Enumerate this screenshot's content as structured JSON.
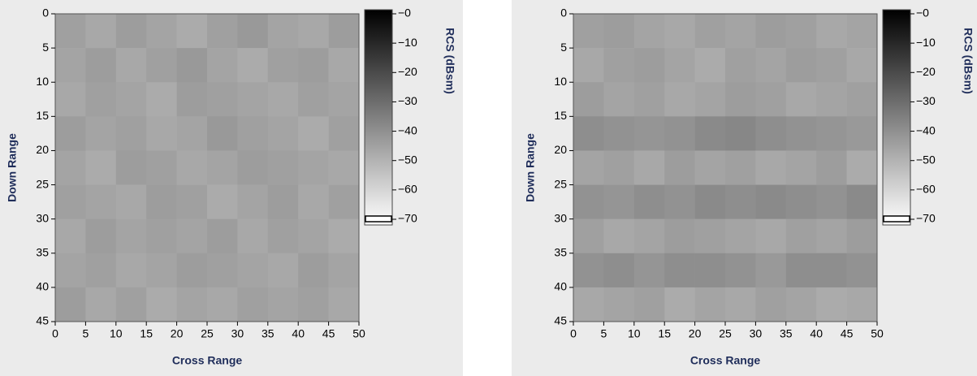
{
  "chart_data": [
    {
      "type": "heatmap",
      "xlabel": "Cross Range",
      "ylabel": "Down Range",
      "colorbar_label": "RCS (dBsm)",
      "xlim": [
        0,
        50
      ],
      "ylim": [
        0,
        45
      ],
      "xticks": [
        0,
        5,
        10,
        15,
        20,
        25,
        30,
        35,
        40,
        45,
        50
      ],
      "yticks": [
        0,
        5,
        10,
        15,
        20,
        25,
        30,
        35,
        40,
        45
      ],
      "zlim": [
        -70,
        0
      ],
      "zticks": [
        {
          "value": 0,
          "label": "−0"
        },
        {
          "value": -10,
          "label": "−10"
        },
        {
          "value": -20,
          "label": "−20"
        },
        {
          "value": -30,
          "label": "−30"
        },
        {
          "value": -40,
          "label": "−40"
        },
        {
          "value": -50,
          "label": "−50"
        },
        {
          "value": -60,
          "label": "−60"
        },
        {
          "value": -70,
          "label": "−70"
        }
      ],
      "z": [
        [
          -44,
          -46,
          -43,
          -45,
          -47,
          -44,
          -42,
          -45,
          -46,
          -43
        ],
        [
          -45,
          -43,
          -46,
          -44,
          -42,
          -45,
          -47,
          -44,
          -43,
          -46
        ],
        [
          -46,
          -44,
          -45,
          -47,
          -43,
          -44,
          -45,
          -46,
          -44,
          -45
        ],
        [
          -43,
          -45,
          -44,
          -46,
          -45,
          -42,
          -44,
          -45,
          -47,
          -44
        ],
        [
          -45,
          -47,
          -43,
          -44,
          -46,
          -45,
          -43,
          -44,
          -45,
          -46
        ],
        [
          -44,
          -45,
          -46,
          -43,
          -44,
          -47,
          -45,
          -43,
          -46,
          -44
        ],
        [
          -46,
          -43,
          -45,
          -44,
          -45,
          -43,
          -46,
          -44,
          -45,
          -47
        ],
        [
          -45,
          -44,
          -46,
          -45,
          -43,
          -44,
          -45,
          -46,
          -43,
          -45
        ],
        [
          -43,
          -46,
          -44,
          -47,
          -45,
          -46,
          -44,
          -45,
          -44,
          -46
        ]
      ]
    },
    {
      "type": "heatmap",
      "xlabel": "Cross Range",
      "ylabel": "Down Range",
      "colorbar_label": "RCS (dBsm)",
      "xlim": [
        0,
        50
      ],
      "ylim": [
        0,
        45
      ],
      "xticks": [
        0,
        5,
        10,
        15,
        20,
        25,
        30,
        35,
        40,
        45,
        50
      ],
      "yticks": [
        0,
        5,
        10,
        15,
        20,
        25,
        30,
        35,
        40,
        45
      ],
      "zlim": [
        -70,
        0
      ],
      "zticks": [
        {
          "value": 0,
          "label": "−0"
        },
        {
          "value": -10,
          "label": "−10"
        },
        {
          "value": -20,
          "label": "−20"
        },
        {
          "value": -30,
          "label": "−30"
        },
        {
          "value": -40,
          "label": "−40"
        },
        {
          "value": -50,
          "label": "−50"
        },
        {
          "value": -60,
          "label": "−60"
        },
        {
          "value": -70,
          "label": "−70"
        }
      ],
      "z": [
        [
          -44,
          -43,
          -45,
          -46,
          -44,
          -45,
          -43,
          -44,
          -46,
          -45
        ],
        [
          -46,
          -44,
          -43,
          -45,
          -47,
          -44,
          -45,
          -43,
          -44,
          -46
        ],
        [
          -43,
          -45,
          -44,
          -46,
          -45,
          -43,
          -44,
          -46,
          -45,
          -44
        ],
        [
          -39,
          -40,
          -41,
          -40,
          -38,
          -37,
          -39,
          -40,
          -41,
          -42
        ],
        [
          -45,
          -44,
          -46,
          -43,
          -45,
          -44,
          -46,
          -45,
          -43,
          -47
        ],
        [
          -40,
          -41,
          -39,
          -40,
          -38,
          -39,
          -38,
          -39,
          -40,
          -38
        ],
        [
          -44,
          -46,
          -45,
          -43,
          -44,
          -45,
          -46,
          -44,
          -45,
          -43
        ],
        [
          -40,
          -39,
          -41,
          -39,
          -39,
          -40,
          -42,
          -39,
          -39,
          -40
        ],
        [
          -46,
          -45,
          -44,
          -47,
          -45,
          -46,
          -44,
          -45,
          -47,
          -46
        ]
      ]
    }
  ]
}
